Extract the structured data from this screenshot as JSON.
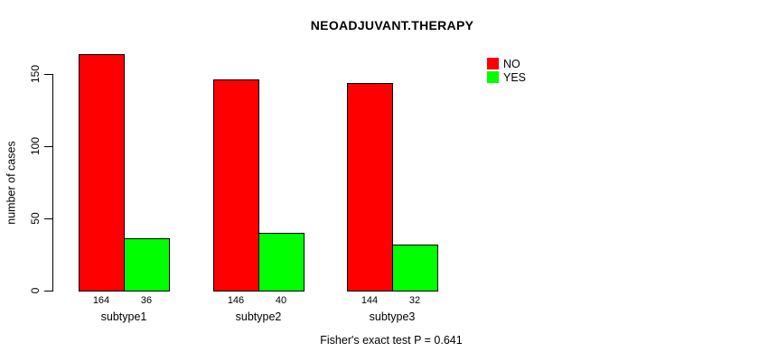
{
  "chart_data": {
    "type": "bar",
    "title": "NEOADJUVANT.THERAPY",
    "categories": [
      "subtype1",
      "subtype2",
      "subtype3"
    ],
    "series": [
      {
        "name": "NO",
        "color": "#ff0000",
        "values": [
          164,
          146,
          144
        ]
      },
      {
        "name": "YES",
        "color": "#00ff00",
        "values": [
          36,
          40,
          32
        ]
      }
    ],
    "xlabel": "",
    "ylabel": "number of cases",
    "yticks": [
      0,
      50,
      100,
      150
    ],
    "ylim": [
      0,
      170
    ],
    "grid": false,
    "legend_position": "top-right",
    "bar_outline_color": "#000000",
    "annotation": "Fisher's exact test P = 0.641"
  }
}
